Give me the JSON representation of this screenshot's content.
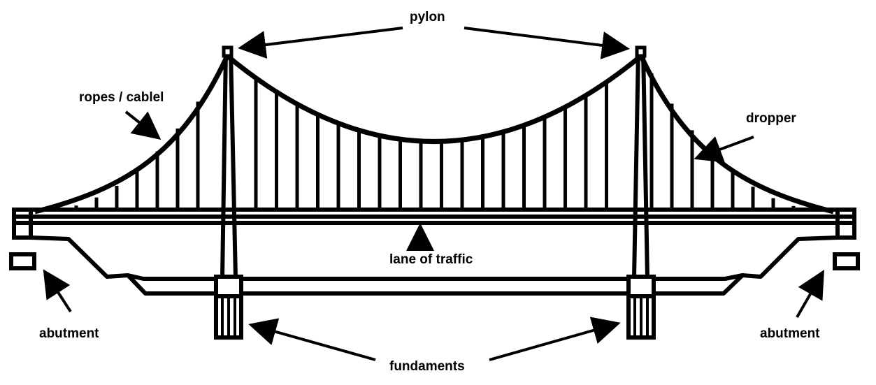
{
  "diagram": {
    "colors": {
      "stroke": "#000000",
      "background": "#ffffff"
    },
    "labels": {
      "pylon": "pylon",
      "ropes": "ropes / cablel",
      "dropper": "dropper",
      "lane": "lane of traffic",
      "abutment_left": "abutment",
      "abutment_right": "abutment",
      "fundaments": "fundaments"
    }
  }
}
